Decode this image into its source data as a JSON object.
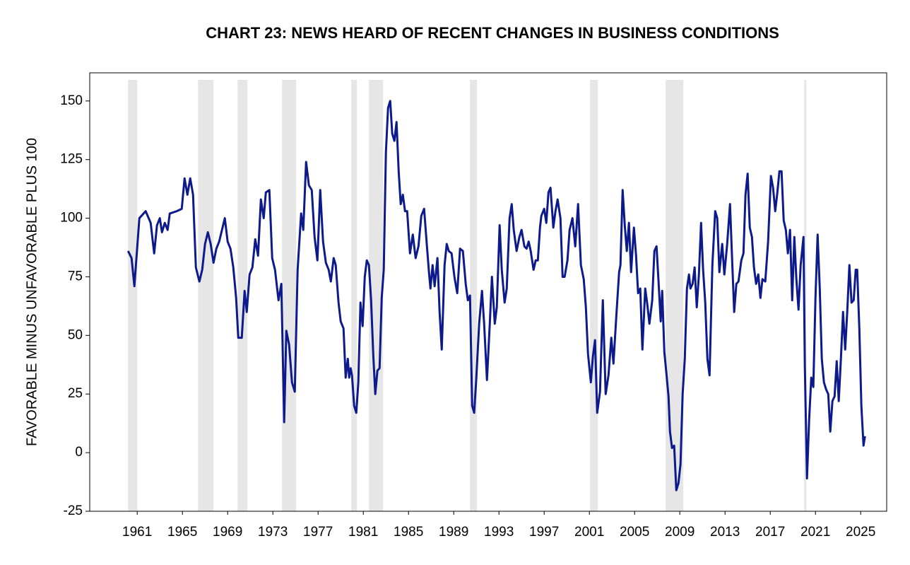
{
  "chart_data": {
    "type": "line",
    "title": "CHART 23: NEWS HEARD OF RECENT CHANGES IN BUSINESS CONDITIONS",
    "y_label": "FAVORABLE MINUS UNFAVORABLE PLUS 100",
    "xlim": [
      1956.8,
      2027.3
    ],
    "ylim": [
      -25,
      162
    ],
    "xticks": [
      1961,
      1965,
      1969,
      1973,
      1977,
      1981,
      1985,
      1989,
      1993,
      1997,
      2001,
      2005,
      2009,
      2013,
      2017,
      2021,
      2025
    ],
    "yticks": [
      -25,
      0,
      25,
      50,
      75,
      100,
      125,
      150
    ],
    "shading": [
      [
        1960.19,
        1961.0
      ],
      [
        1966.38,
        1967.75
      ],
      [
        1969.88,
        1970.75
      ],
      [
        1973.81,
        1975.06
      ],
      [
        1979.94,
        1980.44
      ],
      [
        1981.5,
        1982.75
      ],
      [
        1990.44,
        1991.06
      ],
      [
        2001.06,
        2001.75
      ],
      [
        2007.75,
        2009.31
      ],
      [
        2020.0,
        2020.19
      ]
    ],
    "shading_color": "#e6e6e6",
    "x": [
      1960.19,
      1960.5,
      1960.75,
      1961.19,
      1961.75,
      1962.19,
      1962.5,
      1962.75,
      1963.0,
      1963.19,
      1963.44,
      1963.69,
      1963.88,
      1964.5,
      1964.94,
      1965.19,
      1965.44,
      1965.69,
      1965.94,
      1966.19,
      1966.5,
      1966.75,
      1967.0,
      1967.25,
      1967.5,
      1967.75,
      1968.0,
      1968.25,
      1968.5,
      1968.75,
      1969.0,
      1969.25,
      1969.5,
      1969.75,
      1969.94,
      1970.25,
      1970.5,
      1970.69,
      1970.94,
      1971.19,
      1971.44,
      1971.69,
      1971.94,
      1972.19,
      1972.38,
      1972.69,
      1972.94,
      1973.19,
      1973.5,
      1973.75,
      1974.0,
      1974.19,
      1974.44,
      1974.69,
      1974.94,
      1975.19,
      1975.5,
      1975.69,
      1975.94,
      1976.19,
      1976.44,
      1976.69,
      1976.94,
      1977.19,
      1977.44,
      1977.69,
      1977.94,
      1978.13,
      1978.38,
      1978.56,
      1978.81,
      1979.0,
      1979.25,
      1979.44,
      1979.63,
      1979.75,
      1979.88,
      1980.0,
      1980.19,
      1980.38,
      1980.56,
      1980.75,
      1980.94,
      1981.13,
      1981.31,
      1981.5,
      1981.69,
      1981.88,
      1982.06,
      1982.25,
      1982.44,
      1982.63,
      1982.81,
      1983.0,
      1983.19,
      1983.38,
      1983.56,
      1983.75,
      1983.94,
      1984.13,
      1984.31,
      1984.5,
      1984.69,
      1984.88,
      1985.13,
      1985.38,
      1985.63,
      1985.88,
      1986.13,
      1986.38,
      1986.63,
      1986.81,
      1986.94,
      1987.13,
      1987.31,
      1987.56,
      1987.75,
      1987.94,
      1988.19,
      1988.38,
      1988.56,
      1988.81,
      1989.06,
      1989.31,
      1989.56,
      1989.81,
      1990.06,
      1990.25,
      1990.44,
      1990.63,
      1990.81,
      1991.0,
      1991.25,
      1991.5,
      1991.69,
      1991.94,
      1992.19,
      1992.38,
      1992.63,
      1992.81,
      1993.06,
      1993.25,
      1993.5,
      1993.69,
      1993.94,
      1994.13,
      1994.31,
      1994.56,
      1994.81,
      1995.0,
      1995.25,
      1995.44,
      1995.63,
      1995.81,
      1996.06,
      1996.25,
      1996.44,
      1996.63,
      1996.75,
      1997.0,
      1997.19,
      1997.38,
      1997.56,
      1997.81,
      1998.0,
      1998.19,
      1998.44,
      1998.63,
      1998.81,
      1999.06,
      1999.25,
      1999.5,
      1999.75,
      2000.0,
      2000.25,
      2000.5,
      2000.69,
      2000.88,
      2001.13,
      2001.31,
      2001.5,
      2001.69,
      2001.94,
      2002.19,
      2002.44,
      2002.69,
      2002.94,
      2003.13,
      2003.38,
      2003.63,
      2003.75,
      2003.94,
      2004.13,
      2004.31,
      2004.5,
      2004.69,
      2004.94,
      2005.13,
      2005.31,
      2005.5,
      2005.69,
      2005.94,
      2006.13,
      2006.31,
      2006.56,
      2006.75,
      2006.94,
      2007.13,
      2007.31,
      2007.44,
      2007.63,
      2007.81,
      2008.0,
      2008.13,
      2008.31,
      2008.5,
      2008.69,
      2008.88,
      2009.06,
      2009.25,
      2009.44,
      2009.63,
      2009.81,
      2009.94,
      2010.13,
      2010.31,
      2010.5,
      2010.69,
      2010.88,
      2011.06,
      2011.25,
      2011.44,
      2011.63,
      2011.88,
      2012.13,
      2012.31,
      2012.5,
      2012.75,
      2012.94,
      2013.19,
      2013.44,
      2013.63,
      2013.81,
      2014.0,
      2014.19,
      2014.44,
      2014.63,
      2014.81,
      2015.0,
      2015.19,
      2015.38,
      2015.56,
      2015.75,
      2015.94,
      2016.13,
      2016.31,
      2016.56,
      2016.81,
      2017.06,
      2017.25,
      2017.44,
      2017.63,
      2017.81,
      2018.0,
      2018.19,
      2018.38,
      2018.56,
      2018.75,
      2018.94,
      2019.13,
      2019.31,
      2019.5,
      2019.69,
      2019.94,
      2020.06,
      2020.25,
      2020.44,
      2020.63,
      2020.81,
      2021.0,
      2021.19,
      2021.38,
      2021.56,
      2021.75,
      2021.94,
      2022.13,
      2022.31,
      2022.5,
      2022.69,
      2022.88,
      2023.06,
      2023.25,
      2023.44,
      2023.63,
      2023.81,
      2024.0,
      2024.19,
      2024.38,
      2024.56,
      2024.69,
      2024.88,
      2025.06,
      2025.25,
      2025.38
    ],
    "series": [
      {
        "name": "News heard",
        "color": "#0d1a8c",
        "values": [
          86,
          83,
          71,
          100,
          103,
          98,
          85,
          97,
          100,
          94,
          98,
          95,
          102,
          103,
          104,
          117,
          110,
          117,
          110,
          79,
          73,
          78,
          89,
          94,
          89,
          81,
          87,
          90,
          95,
          100,
          90,
          87,
          79,
          66,
          49,
          49,
          69,
          60,
          76,
          79,
          91,
          84,
          108,
          100,
          111,
          112,
          83,
          78,
          65,
          72,
          13,
          52,
          46,
          30,
          26,
          78,
          102,
          95,
          124,
          114,
          112,
          92,
          82,
          112,
          90,
          81,
          78,
          73,
          83,
          80,
          64,
          56,
          53,
          32,
          40,
          32,
          36,
          33,
          20,
          17,
          30,
          64,
          54,
          75,
          82,
          80,
          65,
          42,
          25,
          35,
          36,
          66,
          78,
          128,
          147,
          150,
          136,
          133,
          141,
          120,
          106,
          110,
          103,
          103,
          85,
          93,
          83,
          88,
          101,
          104,
          88,
          77,
          70,
          80,
          71,
          83,
          60,
          44,
          80,
          89,
          86,
          85,
          75,
          68,
          87,
          86,
          72,
          65,
          67,
          20,
          17,
          32,
          55,
          69,
          55,
          31,
          55,
          75,
          55,
          62,
          97,
          78,
          64,
          70,
          100,
          106,
          95,
          86,
          92,
          95,
          88,
          87,
          90,
          86,
          78,
          82,
          82,
          96,
          101,
          104,
          98,
          111,
          113,
          96,
          103,
          108,
          100,
          75,
          75,
          82,
          95,
          100,
          88,
          106,
          80,
          74,
          62,
          42,
          30,
          41,
          48,
          17,
          26,
          65,
          25,
          33,
          49,
          38,
          58,
          77,
          80,
          112,
          97,
          86,
          98,
          77,
          96,
          84,
          68,
          70,
          44,
          70,
          63,
          55,
          65,
          86,
          88,
          72,
          56,
          69,
          43,
          34,
          24,
          9,
          2,
          3,
          -16,
          -13,
          -5,
          25,
          40,
          70,
          76,
          70,
          72,
          79,
          62,
          76,
          98,
          78,
          64,
          40,
          33,
          80,
          103,
          100,
          77,
          89,
          76,
          89,
          106,
          82,
          60,
          72,
          73,
          82,
          85,
          110,
          119,
          96,
          92,
          79,
          72,
          76,
          66,
          74,
          73,
          90,
          118,
          113,
          103,
          111,
          120,
          120,
          99,
          95,
          85,
          95,
          65,
          92,
          74,
          61,
          80,
          92,
          37,
          -11,
          14,
          32,
          28,
          66,
          93,
          70,
          40,
          30,
          27,
          25,
          9,
          22,
          24,
          39,
          22,
          40,
          60,
          44,
          60,
          80,
          64,
          65,
          78,
          78,
          53,
          20,
          3,
          7
        ]
      }
    ]
  }
}
